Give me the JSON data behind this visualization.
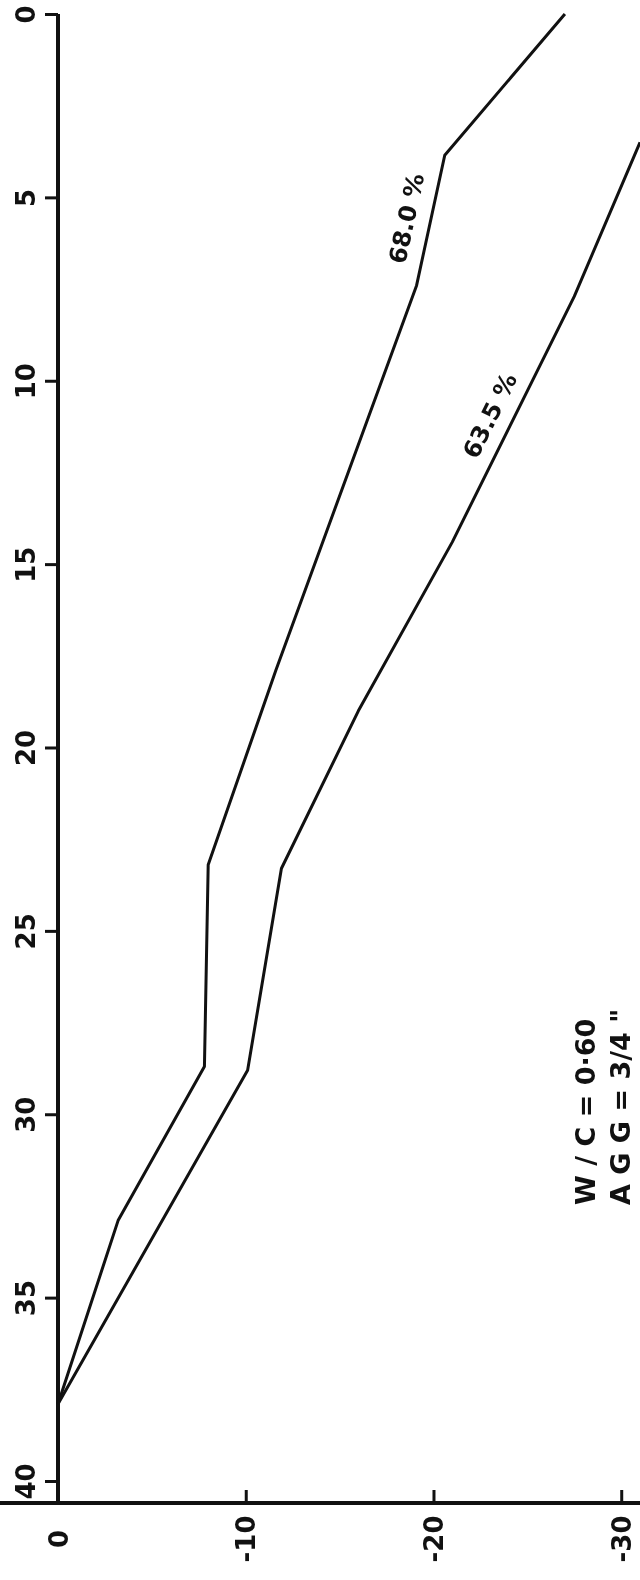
{
  "chart_data": {
    "type": "line",
    "xlim": [
      0,
      -31
    ],
    "xticks": [
      0,
      -10,
      -20,
      -30
    ],
    "ylim": [
      40.6,
      0
    ],
    "yticks": [
      0,
      5,
      10,
      15,
      20,
      25,
      30,
      35,
      40
    ],
    "series": [
      {
        "name": "68.0 %",
        "color": "#111111",
        "x": [
          -27.0,
          -20.6,
          -19.1,
          -11.6,
          -8.0,
          -7.8,
          -3.2,
          0
        ],
        "values": [
          0,
          3.85,
          7.4,
          17.9,
          23.2,
          28.7,
          32.9,
          37.9
        ]
      },
      {
        "name": "63.5 %",
        "color": "#111111",
        "x": [
          -31,
          -27.5,
          -21.0,
          -16.0,
          -11.9,
          -10.1,
          0
        ],
        "values": [
          3.5,
          7.7,
          14.4,
          19.0,
          23.3,
          28.8,
          37.9
        ]
      }
    ],
    "annotations": [
      "W / C = 0·60",
      "A G G = 3/4 \""
    ]
  }
}
